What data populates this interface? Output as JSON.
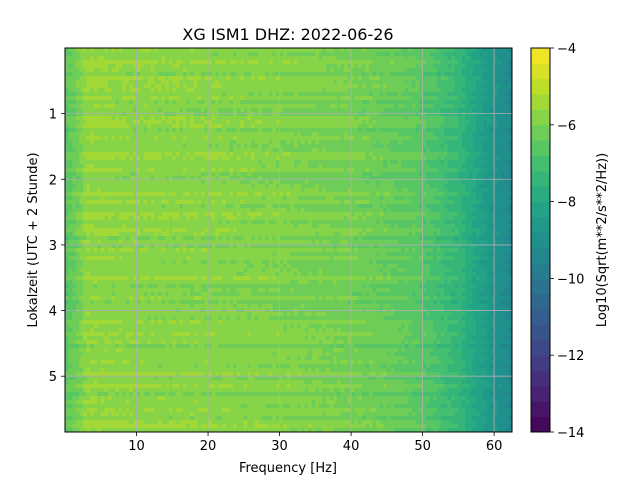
{
  "chart_data": {
    "type": "heatmap",
    "title": "XG ISM1  DHZ: 2022-06-26",
    "xlabel": "Frequency [Hz]",
    "ylabel": "Lokalzeit (UTC + 2 Stunde)",
    "xlim": [
      0,
      62.5
    ],
    "ylim": [
      5.85,
      0
    ],
    "x_ticks": [
      10,
      20,
      30,
      40,
      50,
      60
    ],
    "y_ticks": [
      1,
      2,
      3,
      4,
      5
    ],
    "grid": true,
    "colormap": "viridis",
    "colorbar": {
      "label": "Log10(Sqrt(m**2/s**2/Hz))",
      "range": [
        -14,
        -4
      ],
      "ticks": [
        -4,
        -6,
        -8,
        -10,
        -12,
        -14
      ],
      "levels": 25
    },
    "profile": {
      "frequency_hz": [
        0,
        2,
        3,
        5,
        10,
        20,
        30,
        40,
        45,
        50,
        55,
        58,
        60,
        62.5
      ],
      "log10_amplitude": [
        -6.6,
        -6.1,
        -5.6,
        -5.7,
        -5.75,
        -5.8,
        -5.9,
        -6.1,
        -6.3,
        -6.6,
        -7.4,
        -8.2,
        -8.8,
        -9.3
      ]
    }
  }
}
